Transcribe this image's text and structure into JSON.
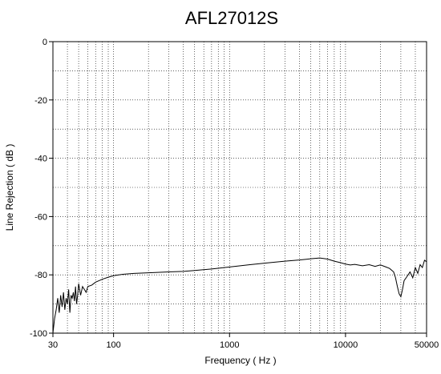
{
  "chart_data": {
    "type": "line",
    "title": "AFL27012S",
    "xlabel": "Frequency ( Hz )",
    "ylabel": "Line Rejection ( dB )",
    "x_scale": "log",
    "xlim": [
      30,
      50000
    ],
    "ylim": [
      -100,
      0
    ],
    "x_ticks": [
      {
        "value": 30,
        "label": "30"
      },
      {
        "value": 100,
        "label": "100"
      },
      {
        "value": 1000,
        "label": "1000"
      },
      {
        "value": 10000,
        "label": "10000"
      },
      {
        "value": 50000,
        "label": "50000"
      }
    ],
    "y_ticks": [
      {
        "value": 0,
        "label": "0"
      },
      {
        "value": -20,
        "label": "-20"
      },
      {
        "value": -40,
        "label": "-40"
      },
      {
        "value": -60,
        "label": "-60"
      },
      {
        "value": -80,
        "label": "-80"
      },
      {
        "value": -100,
        "label": "-100"
      }
    ],
    "grid": true,
    "series": [
      {
        "points": [
          [
            30,
            -100
          ],
          [
            31,
            -95
          ],
          [
            32,
            -92
          ],
          [
            33,
            -88
          ],
          [
            34,
            -93
          ],
          [
            35,
            -87
          ],
          [
            36,
            -91
          ],
          [
            37,
            -86
          ],
          [
            38,
            -92
          ],
          [
            39,
            -88
          ],
          [
            40,
            -90
          ],
          [
            41,
            -85
          ],
          [
            42,
            -93
          ],
          [
            43,
            -87
          ],
          [
            44,
            -88
          ],
          [
            45,
            -86
          ],
          [
            46,
            -89
          ],
          [
            47,
            -84
          ],
          [
            48,
            -90
          ],
          [
            49,
            -87
          ],
          [
            50,
            -83
          ],
          [
            52,
            -87
          ],
          [
            54,
            -84
          ],
          [
            56,
            -85
          ],
          [
            58,
            -86
          ],
          [
            60,
            -84
          ],
          [
            65,
            -83.5
          ],
          [
            70,
            -82.5
          ],
          [
            80,
            -81.5
          ],
          [
            90,
            -80.8
          ],
          [
            100,
            -80.3
          ],
          [
            120,
            -79.8
          ],
          [
            150,
            -79.5
          ],
          [
            200,
            -79.3
          ],
          [
            300,
            -79.0
          ],
          [
            400,
            -78.8
          ],
          [
            500,
            -78.5
          ],
          [
            700,
            -78.0
          ],
          [
            1000,
            -77.3
          ],
          [
            1500,
            -76.5
          ],
          [
            2000,
            -76.0
          ],
          [
            3000,
            -75.3
          ],
          [
            4000,
            -74.9
          ],
          [
            5000,
            -74.5
          ],
          [
            6000,
            -74.2
          ],
          [
            7000,
            -74.6
          ],
          [
            8000,
            -75.3
          ],
          [
            9000,
            -75.8
          ],
          [
            10000,
            -76.3
          ],
          [
            11000,
            -76.6
          ],
          [
            12000,
            -76.4
          ],
          [
            14000,
            -76.9
          ],
          [
            16000,
            -76.5
          ],
          [
            18000,
            -77.1
          ],
          [
            20000,
            -76.6
          ],
          [
            22000,
            -77.2
          ],
          [
            24000,
            -77.8
          ],
          [
            26000,
            -79.0
          ],
          [
            27000,
            -81.0
          ],
          [
            28000,
            -84.0
          ],
          [
            29000,
            -86.5
          ],
          [
            30000,
            -87.5
          ],
          [
            31000,
            -85.0
          ],
          [
            32000,
            -82.0
          ],
          [
            34000,
            -80.5
          ],
          [
            36000,
            -79.0
          ],
          [
            38000,
            -81.0
          ],
          [
            40000,
            -77.5
          ],
          [
            42000,
            -79.5
          ],
          [
            44000,
            -76.5
          ],
          [
            46000,
            -77.5
          ],
          [
            48000,
            -75.0
          ],
          [
            50000,
            -75.5
          ]
        ]
      }
    ]
  }
}
